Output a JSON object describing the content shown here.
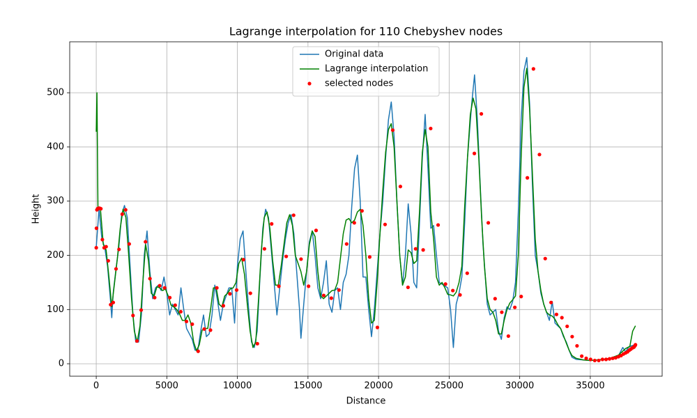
{
  "chart_data": {
    "type": "line",
    "title": "Lagrange interpolation for 110 Chebyshev nodes",
    "xlabel": "Distance",
    "ylabel": "Height",
    "xlim": [
      -1880,
      40090
    ],
    "ylim": [
      -23,
      594
    ],
    "xticks": [
      0,
      5000,
      10000,
      15000,
      20000,
      25000,
      30000,
      35000
    ],
    "yticks": [
      0,
      100,
      200,
      300,
      400,
      500
    ],
    "grid": true,
    "legend": "upper center",
    "series": [
      {
        "name": "Original data",
        "color": "#1f77b4",
        "style": "line",
        "x": [
          0,
          200,
          400,
          600,
          800,
          1000,
          1100,
          1200,
          1400,
          1600,
          1800,
          2000,
          2200,
          2400,
          2600,
          2800,
          3000,
          3200,
          3400,
          3600,
          3800,
          4000,
          4200,
          4400,
          4600,
          4800,
          5000,
          5200,
          5400,
          5600,
          5800,
          6000,
          6200,
          6400,
          6600,
          6800,
          7000,
          7200,
          7400,
          7600,
          7800,
          8000,
          8200,
          8400,
          8600,
          8800,
          9000,
          9200,
          9400,
          9600,
          9800,
          10000,
          10200,
          10400,
          10600,
          10800,
          11000,
          11200,
          11400,
          11600,
          11800,
          12000,
          12200,
          12400,
          12600,
          12800,
          13000,
          13200,
          13400,
          13600,
          13800,
          14000,
          14200,
          14400,
          14500,
          14700,
          14900,
          15100,
          15300,
          15500,
          15700,
          15900,
          16100,
          16300,
          16500,
          16700,
          16900,
          17100,
          17300,
          17500,
          17700,
          17900,
          18100,
          18300,
          18500,
          18700,
          18900,
          19100,
          19300,
          19500,
          19700,
          19900,
          20100,
          20300,
          20500,
          20700,
          20900,
          21100,
          21300,
          21500,
          21700,
          21900,
          22100,
          22300,
          22500,
          22700,
          22900,
          23100,
          23300,
          23500,
          23700,
          23900,
          24100,
          24300,
          24600,
          24900,
          25100,
          25300,
          25500,
          25700,
          25900,
          26100,
          26300,
          26600,
          26800,
          27000,
          27200,
          27400,
          27700,
          27900,
          28100,
          28300,
          28500,
          28700,
          28900,
          29100,
          29300,
          29500,
          29700,
          29900,
          30100,
          30300,
          30500,
          30700,
          30900,
          31100,
          31300,
          31500,
          31700,
          31900,
          32100,
          32300,
          32500,
          32700,
          32900,
          33100,
          33300,
          33500,
          33700,
          34000,
          34500,
          35000,
          35500,
          36000,
          36500,
          37000,
          37300,
          37500,
          37700,
          37900,
          38200
        ],
        "values": [
          215,
          285,
          230,
          215,
          180,
          120,
          85,
          130,
          175,
          215,
          275,
          292,
          270,
          180,
          90,
          40,
          40,
          90,
          200,
          245,
          170,
          120,
          140,
          145,
          135,
          160,
          130,
          90,
          110,
          100,
          90,
          140,
          100,
          65,
          55,
          45,
          25,
          25,
          60,
          90,
          50,
          55,
          90,
          145,
          115,
          80,
          110,
          125,
          140,
          140,
          75,
          180,
          230,
          245,
          170,
          100,
          40,
          30,
          60,
          160,
          250,
          285,
          270,
          210,
          150,
          90,
          140,
          190,
          230,
          260,
          275,
          240,
          170,
          100,
          47,
          110,
          170,
          225,
          245,
          200,
          140,
          120,
          150,
          190,
          110,
          95,
          135,
          140,
          100,
          150,
          165,
          200,
          290,
          360,
          385,
          300,
          160,
          160,
          100,
          50,
          100,
          170,
          240,
          300,
          380,
          450,
          483,
          420,
          300,
          200,
          145,
          200,
          295,
          240,
          150,
          140,
          260,
          380,
          460,
          360,
          250,
          255,
          200,
          150,
          145,
          140,
          100,
          30,
          110,
          130,
          160,
          260,
          380,
          480,
          533,
          450,
          330,
          220,
          110,
          90,
          95,
          100,
          60,
          45,
          85,
          105,
          100,
          115,
          150,
          280,
          450,
          540,
          565,
          480,
          330,
          200,
          170,
          130,
          110,
          95,
          80,
          115,
          75,
          70,
          65,
          50,
          40,
          25,
          12,
          8,
          7,
          6,
          7,
          8,
          11,
          15,
          30,
          22,
          30,
          33,
          35
        ]
      },
      {
        "name": "Lagrange interpolation",
        "color": "#008000",
        "style": "line",
        "x": [
          0,
          50,
          120,
          300,
          500,
          700,
          900,
          1100,
          1300,
          1500,
          1700,
          1900,
          2100,
          2300,
          2500,
          2700,
          2900,
          3100,
          3300,
          3500,
          3700,
          3900,
          4100,
          4300,
          4500,
          4700,
          4900,
          5100,
          5300,
          5500,
          5700,
          5900,
          6100,
          6300,
          6500,
          6700,
          6900,
          7100,
          7300,
          7500,
          7700,
          7900,
          8100,
          8300,
          8500,
          8700,
          8900,
          9100,
          9300,
          9500,
          9700,
          9900,
          10100,
          10300,
          10500,
          10700,
          10900,
          11100,
          11300,
          11500,
          11700,
          11900,
          12100,
          12300,
          12500,
          12700,
          12900,
          13100,
          13300,
          13500,
          13700,
          13900,
          14100,
          14300,
          14500,
          14700,
          14900,
          15100,
          15300,
          15500,
          15700,
          15900,
          16100,
          16300,
          16500,
          16700,
          16900,
          17100,
          17300,
          17500,
          17700,
          17900,
          18100,
          18300,
          18500,
          18700,
          18900,
          19100,
          19300,
          19500,
          19700,
          19900,
          20100,
          20300,
          20500,
          20700,
          20900,
          21100,
          21300,
          21500,
          21700,
          21900,
          22100,
          22300,
          22500,
          22700,
          22900,
          23100,
          23300,
          23500,
          23700,
          23900,
          24100,
          24300,
          24500,
          24700,
          24900,
          25100,
          25300,
          25500,
          25700,
          25900,
          26100,
          26300,
          26500,
          26700,
          26900,
          27100,
          27300,
          27500,
          27700,
          27900,
          28100,
          28300,
          28500,
          28700,
          28900,
          29100,
          29300,
          29500,
          29700,
          29900,
          30100,
          30300,
          30500,
          30700,
          30900,
          31100,
          31300,
          31500,
          31700,
          31900,
          32100,
          32300,
          32500,
          32700,
          32900,
          33100,
          33300,
          33500,
          33700,
          34000,
          34500,
          35000,
          35500,
          36000,
          36500,
          37000,
          37500,
          37800,
          38000,
          38200
        ],
        "values": [
          428,
          500,
          290,
          285,
          220,
          210,
          160,
          105,
          150,
          195,
          250,
          285,
          270,
          200,
          120,
          60,
          40,
          70,
          150,
          220,
          190,
          130,
          125,
          142,
          140,
          135,
          138,
          125,
          108,
          105,
          100,
          92,
          80,
          80,
          90,
          75,
          40,
          24,
          35,
          62,
          65,
          65,
          100,
          140,
          140,
          110,
          105,
          125,
          130,
          138,
          140,
          150,
          185,
          195,
          165,
          110,
          60,
          30,
          40,
          120,
          210,
          270,
          280,
          250,
          190,
          145,
          145,
          180,
          220,
          260,
          275,
          255,
          200,
          185,
          170,
          145,
          170,
          220,
          245,
          235,
          170,
          125,
          120,
          125,
          130,
          135,
          136,
          150,
          195,
          240,
          265,
          268,
          260,
          265,
          280,
          285,
          255,
          200,
          120,
          75,
          80,
          150,
          240,
          320,
          390,
          432,
          443,
          400,
          300,
          200,
          145,
          160,
          210,
          205,
          185,
          190,
          280,
          390,
          432,
          400,
          280,
          230,
          160,
          145,
          150,
          140,
          128,
          127,
          125,
          132,
          150,
          180,
          290,
          380,
          460,
          490,
          470,
          380,
          270,
          180,
          120,
          100,
          95,
          80,
          55,
          55,
          80,
          100,
          112,
          118,
          125,
          200,
          380,
          510,
          545,
          470,
          350,
          230,
          170,
          135,
          110,
          95,
          90,
          88,
          82,
          72,
          65,
          52,
          38,
          25,
          15,
          10,
          7,
          6,
          7,
          8,
          11,
          16,
          28,
          32,
          60,
          70
        ]
      },
      {
        "name": "selected nodes",
        "color": "#ff0000",
        "style": "scatter",
        "x": [
          2,
          17,
          49,
          96,
          157,
          235,
          328,
          436,
          560,
          699,
          852,
          1021,
          1204,
          1402,
          1613,
          1841,
          2083,
          2337,
          2604,
          2885,
          3182,
          3490,
          3807,
          4139,
          4495,
          4844,
          5211,
          5595,
          5988,
          6393,
          6802,
          7219,
          7651,
          8093,
          8544,
          9004,
          9470,
          9946,
          10429,
          10920,
          11415,
          11917,
          12427,
          12939,
          13458,
          13982,
          14508,
          15040,
          15575,
          16114,
          16654,
          17195,
          17739,
          18283,
          18827,
          19373,
          19917,
          20461,
          21005,
          21546,
          22086,
          22625,
          23160,
          23692,
          24218,
          24742,
          25261,
          25772,
          26280,
          26787,
          27281,
          27774,
          28256,
          28730,
          29196,
          29653,
          30103,
          30542,
          30972,
          31398,
          31807,
          32220,
          32606,
          32989,
          33361,
          33715,
          34060,
          34393,
          34710,
          35018,
          35315,
          35598,
          35863,
          36116,
          36359,
          36587,
          36798,
          36996,
          37180,
          37348,
          37503,
          37640,
          37765,
          37872,
          37965,
          38043,
          38104,
          38151,
          38183,
          38198
        ],
        "values": [
          214,
          250,
          284,
          286,
          287,
          287,
          286,
          229,
          214,
          216,
          190,
          109,
          113,
          175,
          211,
          276,
          284,
          221,
          89,
          42,
          99,
          225,
          157,
          122,
          144,
          140,
          122,
          108,
          96,
          78,
          73,
          23,
          64,
          62,
          140,
          107,
          129,
          136,
          192,
          130,
          37,
          212,
          258,
          143,
          198,
          274,
          193,
          143,
          246,
          126,
          121,
          136,
          221,
          260,
          282,
          197,
          67,
          257,
          431,
          327,
          141,
          212,
          210,
          434,
          256,
          147,
          135,
          127,
          167,
          388,
          461,
          260,
          120,
          95,
          51,
          104,
          124,
          343,
          544,
          386,
          194,
          113,
          91,
          85,
          69,
          50,
          33,
          14,
          10,
          8,
          6,
          6,
          8,
          8,
          9,
          10,
          11,
          13,
          15,
          18,
          20,
          22,
          25,
          27,
          29,
          30,
          31,
          33,
          34,
          35
        ]
      }
    ]
  }
}
